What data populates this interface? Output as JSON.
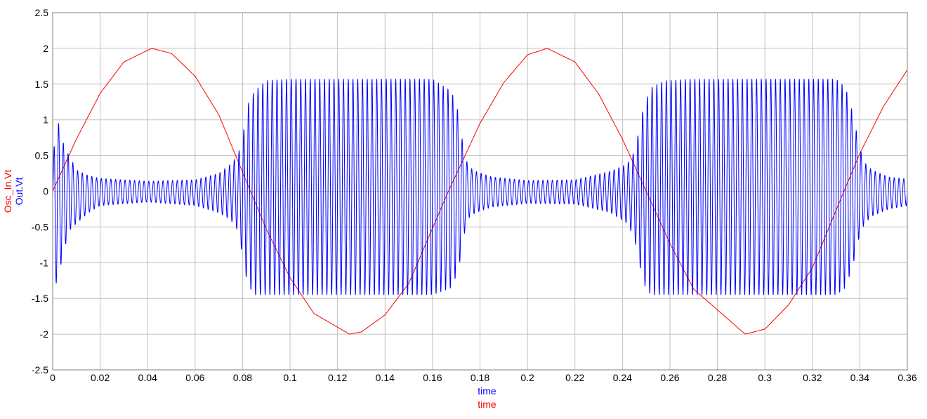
{
  "chart_data": {
    "type": "line",
    "title": "",
    "xlabel_lines": [
      {
        "text": "time",
        "color": "#0000ff"
      },
      {
        "text": "time",
        "color": "#ff0000"
      }
    ],
    "ylabel_lines": [
      {
        "text": "Osc_In.Vt",
        "color": "#ff0000"
      },
      {
        "text": "Out.Vt",
        "color": "#0000ff"
      }
    ],
    "xlim": [
      0,
      0.36
    ],
    "ylim": [
      -2.5,
      2.5
    ],
    "xticks": [
      0,
      0.02,
      0.04,
      0.06,
      0.08,
      0.1,
      0.12,
      0.14,
      0.16,
      0.18,
      0.2,
      0.22,
      0.24,
      0.26,
      0.28,
      0.3,
      0.32,
      0.34,
      0.36
    ],
    "xtick_labels": [
      "0",
      "0.02",
      "0.04",
      "0.06",
      "0.08",
      "0.1",
      "0.12",
      "0.14",
      "0.16",
      "0.18",
      "0.2",
      "0.22",
      "0.24",
      "0.26",
      "0.28",
      "0.3",
      "0.32",
      "0.34",
      "0.36"
    ],
    "yticks": [
      2.5,
      2,
      1.5,
      1,
      0.5,
      0,
      -0.5,
      -1,
      -1.5,
      -2,
      -2.5
    ],
    "ytick_labels": [
      "2.5",
      "2",
      "1.5",
      "1",
      "0.5",
      "0",
      "-0.5",
      "-1",
      "-1.5",
      "-2",
      "-2.5"
    ],
    "grid": true,
    "series": [
      {
        "name": "Osc_In.Vt",
        "color": "#ff0000",
        "x": [
          0,
          0.01,
          0.02,
          0.03,
          0.0417,
          0.05,
          0.06,
          0.07,
          0.0833,
          0.09,
          0.1,
          0.11,
          0.125,
          0.13,
          0.14,
          0.15,
          0.1667,
          0.18,
          0.19,
          0.2,
          0.2083,
          0.22,
          0.23,
          0.24,
          0.25,
          0.26,
          0.27,
          0.2917,
          0.3,
          0.31,
          0.32,
          0.3333,
          0.34,
          0.35,
          0.36
        ],
        "values": [
          0,
          0.73,
          1.37,
          1.81,
          2.0,
          1.93,
          1.61,
          1.07,
          0,
          -0.53,
          -1.21,
          -1.71,
          -2.0,
          -1.97,
          -1.73,
          -1.29,
          0,
          0.95,
          1.52,
          1.91,
          2.0,
          1.81,
          1.36,
          0.73,
          0,
          -0.73,
          -1.37,
          -2.0,
          -1.93,
          -1.59,
          -1.07,
          0,
          0.53,
          1.19,
          1.7
        ]
      },
      {
        "name": "Out.Vt",
        "color": "#0000ff",
        "oscillation_period": 0.002,
        "envelope_x": [
          0,
          0.001,
          0.003,
          0.005,
          0.007,
          0.01,
          0.015,
          0.02,
          0.04,
          0.06,
          0.07,
          0.075,
          0.078,
          0.08,
          0.082,
          0.085,
          0.09,
          0.1,
          0.16,
          0.168,
          0.171,
          0.173,
          0.175,
          0.178,
          0.185,
          0.2,
          0.22,
          0.235,
          0.242,
          0.245,
          0.247,
          0.249,
          0.252,
          0.258,
          0.27,
          0.33,
          0.334,
          0.337,
          0.34,
          0.342,
          0.345,
          0.352,
          0.36
        ],
        "envelope_upper": [
          0,
          1.1,
          0.9,
          0.6,
          0.5,
          0.3,
          0.22,
          0.18,
          0.14,
          0.16,
          0.25,
          0.38,
          0.5,
          0.75,
          1.2,
          1.4,
          1.55,
          1.57,
          1.57,
          1.4,
          1.1,
          0.6,
          0.35,
          0.28,
          0.2,
          0.15,
          0.16,
          0.28,
          0.38,
          0.55,
          0.85,
          1.2,
          1.45,
          1.55,
          1.57,
          1.57,
          1.45,
          1.1,
          0.6,
          0.4,
          0.3,
          0.2,
          0.17
        ],
        "envelope_lower": [
          0,
          -1.35,
          -1.1,
          -0.8,
          -0.55,
          -0.45,
          -0.3,
          -0.2,
          -0.15,
          -0.2,
          -0.3,
          -0.4,
          -0.55,
          -0.9,
          -1.3,
          -1.45,
          -1.45,
          -1.45,
          -1.45,
          -1.35,
          -1.1,
          -0.65,
          -0.38,
          -0.3,
          -0.22,
          -0.17,
          -0.18,
          -0.3,
          -0.45,
          -0.65,
          -1.0,
          -1.3,
          -1.45,
          -1.45,
          -1.45,
          -1.45,
          -1.35,
          -1.05,
          -0.6,
          -0.45,
          -0.35,
          -0.25,
          -0.2
        ]
      }
    ]
  }
}
